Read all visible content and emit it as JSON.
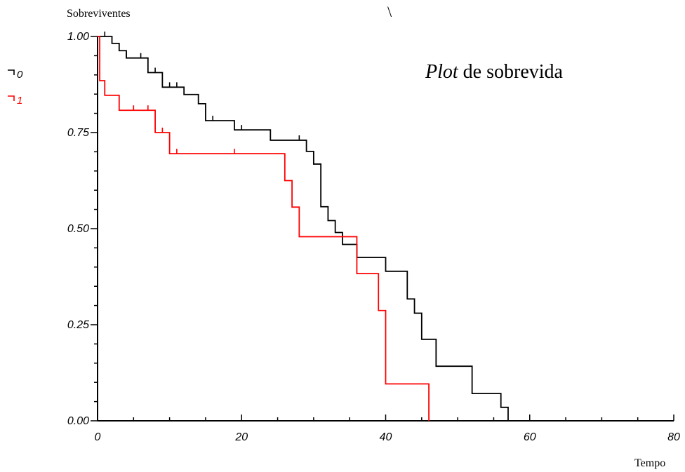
{
  "chart_data": {
    "type": "line",
    "step": true,
    "title_italic": "Plot",
    "title_rest": " de sobrevida",
    "ylabel": "Sobreviventes",
    "xlabel": "Tempo",
    "stray_mark": "\\",
    "xlim": [
      0,
      80
    ],
    "ylim": [
      0,
      1
    ],
    "x_ticks": [
      0,
      20,
      40,
      60,
      80
    ],
    "x_tick_labels": [
      "0",
      "20",
      "40",
      "60",
      "80"
    ],
    "y_ticks": [
      0,
      0.25,
      0.5,
      0.75,
      1.0
    ],
    "y_tick_labels": [
      "0.00",
      "0.25",
      "0.50",
      "0.75",
      "1.00"
    ],
    "grid": false,
    "legend_position": "left",
    "series": [
      {
        "name": "0",
        "color": "#000000",
        "steps": [
          [
            0,
            1.0
          ],
          [
            2,
            0.982
          ],
          [
            3,
            0.963
          ],
          [
            4,
            0.944
          ],
          [
            7,
            0.906
          ],
          [
            9,
            0.868
          ],
          [
            12,
            0.849
          ],
          [
            14,
            0.825
          ],
          [
            15,
            0.781
          ],
          [
            19,
            0.757
          ],
          [
            24,
            0.73
          ],
          [
            29,
            0.701
          ],
          [
            30,
            0.668
          ],
          [
            31,
            0.557
          ],
          [
            32,
            0.521
          ],
          [
            33,
            0.49
          ],
          [
            34,
            0.459
          ],
          [
            36,
            0.425
          ],
          [
            40,
            0.389
          ],
          [
            43,
            0.317
          ],
          [
            44,
            0.28
          ],
          [
            45,
            0.212
          ],
          [
            47,
            0.142
          ],
          [
            52,
            0.071
          ],
          [
            56,
            0.035
          ],
          [
            57,
            0.0
          ]
        ],
        "censored": [
          1,
          4,
          6,
          8,
          10,
          11,
          16,
          20,
          28
        ]
      },
      {
        "name": "1",
        "color": "#ff0000",
        "steps": [
          [
            0,
            1.0
          ],
          [
            0.3,
            0.885
          ],
          [
            1,
            0.847
          ],
          [
            3,
            0.808
          ],
          [
            8,
            0.75
          ],
          [
            10,
            0.695
          ],
          [
            26,
            0.625
          ],
          [
            27,
            0.556
          ],
          [
            28,
            0.479
          ],
          [
            36,
            0.383
          ],
          [
            39,
            0.287
          ],
          [
            40,
            0.096
          ],
          [
            46,
            0.0
          ]
        ],
        "censored": [
          5,
          7,
          9,
          11,
          19
        ]
      }
    ]
  }
}
